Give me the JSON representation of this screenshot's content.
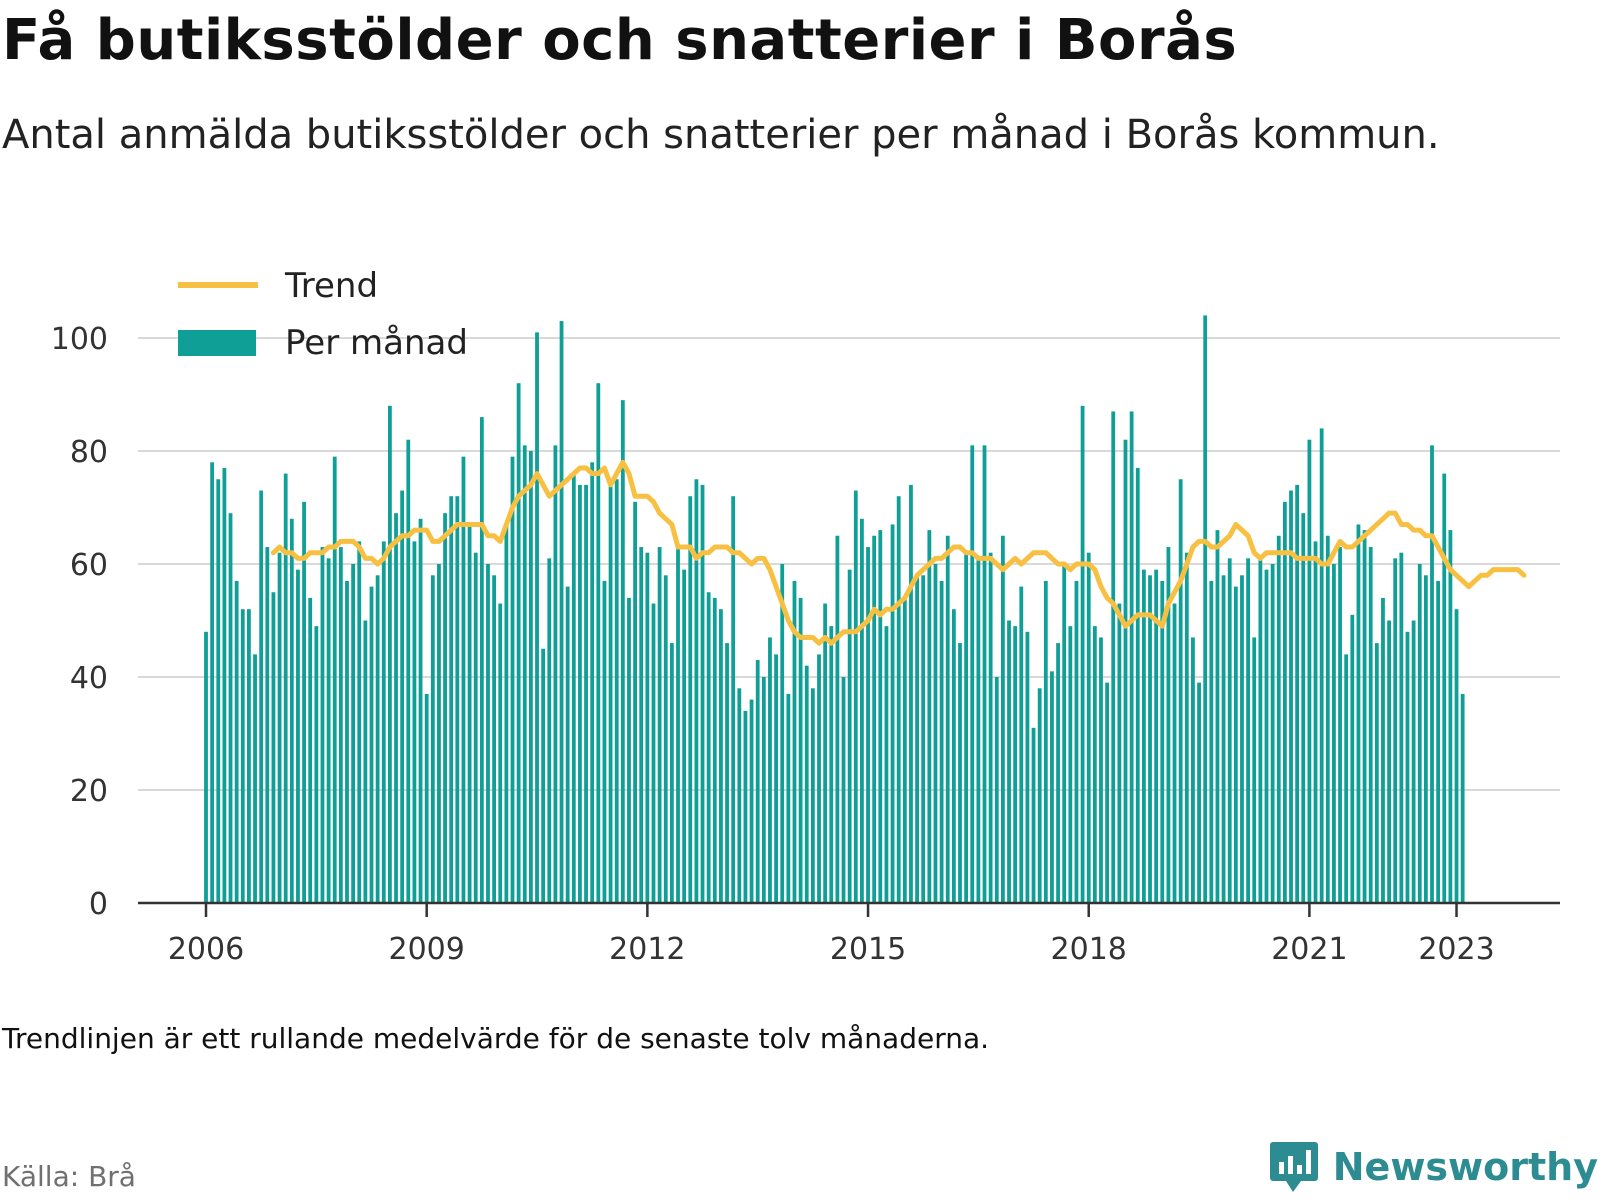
{
  "title": "Få butiksstölder och snatterier i Borås",
  "subtitle": "Antal anmälda butiksstölder och snatterier per månad i Borås kommun.",
  "note": "Trendlinjen är ett rullande medelvärde för de senaste tolv månaderna.",
  "source": "Källa: Brå",
  "brand": "Newsworthy",
  "colors": {
    "bars": "#0f9f97",
    "trend": "#f8c042",
    "grid": "#d9d9d9",
    "axis": "#333333",
    "brand": "#2c8c92"
  },
  "chart_data": {
    "type": "bar",
    "x_range": [
      "2006-01",
      "2023-02"
    ],
    "ylim": [
      0,
      100
    ],
    "yticks": [
      "0",
      "20",
      "40",
      "60",
      "80",
      "100"
    ],
    "xticks": [
      "2006",
      "2009",
      "2012",
      "2015",
      "2018",
      "2021",
      "2023"
    ],
    "grid": true,
    "legend": {
      "placement": "top-left",
      "entries": [
        "Trend",
        "Per månad"
      ]
    },
    "series": [
      {
        "name": "Per månad",
        "kind": "bar",
        "start": "2006-01",
        "values": [
          48,
          78,
          75,
          77,
          69,
          57,
          52,
          52,
          44,
          73,
          63,
          55,
          62,
          76,
          68,
          59,
          71,
          54,
          49,
          63,
          61,
          79,
          63,
          57,
          60,
          64,
          50,
          56,
          58,
          64,
          88,
          69,
          73,
          82,
          64,
          68,
          37,
          58,
          60,
          69,
          72,
          72,
          79,
          67,
          62,
          86,
          60,
          58,
          53,
          67,
          79,
          92,
          81,
          80,
          101,
          45,
          61,
          81,
          103,
          56,
          76,
          74,
          74,
          78,
          92,
          57,
          74,
          75,
          89,
          54,
          71,
          63,
          62,
          53,
          63,
          58,
          46,
          63,
          59,
          72,
          75,
          74,
          55,
          54,
          52,
          46,
          72,
          38,
          34,
          36,
          43,
          40,
          47,
          44,
          60,
          37,
          57,
          54,
          42,
          38,
          44,
          53,
          49,
          65,
          40,
          59,
          73,
          68,
          63,
          65,
          66,
          49,
          67,
          72,
          54,
          74,
          58,
          58,
          66,
          60,
          57,
          65,
          52,
          46,
          62,
          81,
          61,
          81,
          62,
          40,
          65,
          50,
          49,
          56,
          48,
          31,
          38,
          57,
          41,
          46,
          60,
          49,
          57,
          88,
          62,
          49,
          47,
          39,
          87,
          53,
          82,
          87,
          77,
          59,
          58,
          59,
          57,
          63,
          53,
          75,
          62,
          47,
          39,
          104,
          57,
          66,
          58,
          61,
          56,
          58,
          61,
          47,
          61,
          59,
          60,
          65,
          71,
          73,
          74,
          69,
          82,
          64,
          84,
          65,
          60,
          63,
          44,
          51,
          67,
          66,
          63,
          46,
          54,
          50,
          61,
          62,
          48,
          50,
          60,
          58,
          81,
          57,
          76,
          66,
          52,
          37
        ]
      },
      {
        "name": "Trend",
        "kind": "line",
        "start": "2006-12",
        "values": [
          62,
          63,
          62,
          62,
          61,
          61,
          62,
          62,
          62,
          63,
          63,
          64,
          64,
          64,
          63,
          61,
          61,
          60,
          61,
          63,
          64,
          65,
          65,
          66,
          66,
          66,
          64,
          64,
          65,
          66,
          67,
          67,
          67,
          67,
          67,
          65,
          65,
          64,
          67,
          70,
          72,
          73,
          74,
          76,
          74,
          72,
          73,
          74,
          75,
          76,
          77,
          77,
          76,
          76,
          77,
          74,
          76,
          78,
          76,
          72,
          72,
          72,
          71,
          69,
          68,
          67,
          63,
          63,
          63,
          61,
          62,
          62,
          63,
          63,
          63,
          62,
          62,
          61,
          60,
          61,
          61,
          59,
          56,
          53,
          50,
          48,
          47,
          47,
          47,
          46,
          47,
          46,
          47,
          48,
          48,
          48,
          49,
          50,
          52,
          51,
          52,
          52,
          53,
          54,
          56,
          58,
          59,
          60,
          61,
          61,
          62,
          63,
          63,
          62,
          62,
          61,
          61,
          61,
          60,
          59,
          60,
          61,
          60,
          61,
          62,
          62,
          62,
          61,
          60,
          60,
          59,
          60,
          60,
          60,
          59,
          56,
          54,
          53,
          51,
          49,
          50,
          51,
          51,
          51,
          50,
          49,
          53,
          55,
          57,
          60,
          63,
          64,
          64,
          63,
          63,
          64,
          65,
          67,
          66,
          65,
          62,
          61,
          62,
          62,
          62,
          62,
          62,
          61,
          61,
          61,
          61,
          60,
          60,
          62,
          64,
          63,
          63,
          64,
          65,
          66,
          67,
          68,
          69,
          69,
          67,
          67,
          66,
          66,
          65,
          65,
          63,
          61,
          59,
          58,
          57,
          56,
          57,
          58,
          58,
          59,
          59,
          59,
          59,
          59,
          58
        ]
      }
    ]
  }
}
